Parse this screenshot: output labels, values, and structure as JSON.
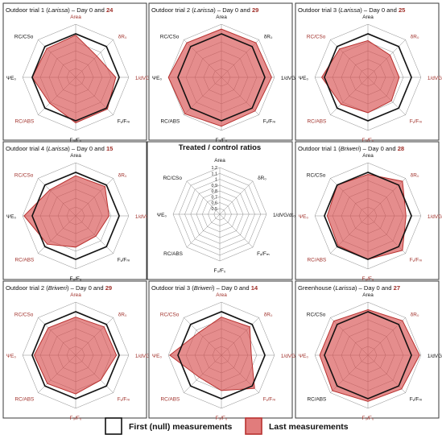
{
  "chart_data": [
    {
      "type": "radar",
      "title": "Outdoor trial 1 (Larissa) – Day 0 and 24",
      "title_parts": [
        "Outdoor trial 1 (",
        "Larissa",
        ") – Day 0 and ",
        "24"
      ],
      "axes": [
        "Area",
        "δR₀",
        "1/dVG/dt₀",
        "Fᵥ/Fₘ",
        "F₀/F₀",
        "RC/ABS",
        "ΨE₀",
        "RC/CSo"
      ],
      "axes_red": [
        true,
        true,
        true,
        false,
        false,
        true,
        false,
        false
      ],
      "series": [
        {
          "name": "First (null) measurements",
          "values": [
            1,
            1,
            1,
            1,
            1,
            1,
            1,
            1
          ]
        },
        {
          "name": "Last measurements",
          "values": [
            0.98,
            0.8,
            0.95,
            1.02,
            1.03,
            0.9,
            1.0,
            0.96
          ]
        }
      ],
      "rlim": [
        0.5,
        1.25
      ]
    },
    {
      "type": "radar",
      "title": "Outdoor trial 2 (Larissa) – Day 0 and 29",
      "title_parts": [
        "Outdoor trial 2 (",
        "Larissa",
        ") – Day 0 and ",
        "29"
      ],
      "axes": [
        "Area",
        "δR₀",
        "1/dVG/dt₀",
        "Fᵥ/Fₘ",
        "F₀/F₀",
        "RC/ABS",
        "ΨE₀",
        "RC/CSo"
      ],
      "axes_red": [
        false,
        false,
        false,
        false,
        false,
        false,
        false,
        false
      ],
      "series": [
        {
          "name": "First (null) measurements",
          "values": [
            1,
            1,
            1,
            1,
            1,
            1,
            1,
            1
          ]
        },
        {
          "name": "Last measurements",
          "values": [
            1.07,
            1.08,
            1.1,
            1.06,
            1.08,
            1.12,
            1.14,
            1.08
          ]
        }
      ],
      "rlim": [
        0.5,
        1.25
      ]
    },
    {
      "type": "radar",
      "title": "Outdoor trial 3 (Larissa) – Day 0 and 25",
      "title_parts": [
        "Outdoor trial 3 (",
        "Larissa",
        ") – Day 0 and ",
        "25"
      ],
      "axes": [
        "Area",
        "δR₀",
        "1/dVG/dt₀",
        "Fᵥ/Fₘ",
        "F₀/F₀",
        "RC/ABS",
        "ΨE₀",
        "RC/CSo"
      ],
      "axes_red": [
        false,
        true,
        true,
        true,
        true,
        true,
        false,
        true
      ],
      "series": [
        {
          "name": "First (null) measurements",
          "values": [
            1,
            1,
            1,
            1,
            1,
            1,
            1,
            1
          ]
        },
        {
          "name": "Last measurements",
          "values": [
            0.9,
            0.82,
            0.82,
            0.85,
            0.88,
            0.92,
            1.04,
            0.95
          ]
        }
      ],
      "rlim": [
        0.5,
        1.25
      ]
    },
    {
      "type": "radar",
      "title": "Outdoor trial 4 (Larissa) – Day 0 and 15",
      "title_parts": [
        "Outdoor trial 4 (",
        "Larissa",
        ") – Day 0 and ",
        "15"
      ],
      "axes": [
        "Area",
        "δR₀",
        "1/dVG/dt₀",
        "Fᵥ/Fₘ",
        "F₀/F₀",
        "RC/ABS",
        "ΨE₀",
        "RC/CSo"
      ],
      "axes_red": [
        false,
        true,
        true,
        false,
        false,
        true,
        false,
        true
      ],
      "series": [
        {
          "name": "First (null) measurements",
          "values": [
            1,
            1,
            1,
            1,
            1,
            1,
            1,
            1
          ]
        },
        {
          "name": "Last measurements",
          "values": [
            0.95,
            0.97,
            0.85,
            0.78,
            0.82,
            0.95,
            1.12,
            0.9
          ]
        }
      ],
      "rlim": [
        0.5,
        1.25
      ]
    },
    {
      "type": "radar",
      "title": "Outdoor trial 1 (Briweri) – Day 0 and 28",
      "title_parts": [
        "Outdoor trial 1 (",
        "Briweri",
        ") – Day 0 and ",
        "28"
      ],
      "axes": [
        "Area",
        "δR₀",
        "1/dVG/dt₀",
        "Fᵥ/Fₘ",
        "F₀/F₀",
        "RC/ABS",
        "ΨE₀",
        "RC/CSo"
      ],
      "axes_red": [
        false,
        true,
        true,
        true,
        true,
        true,
        true,
        false
      ],
      "series": [
        {
          "name": "First (null) measurements",
          "values": [
            1,
            1,
            1,
            1,
            1,
            1,
            1,
            1
          ]
        },
        {
          "name": "Last measurements",
          "values": [
            0.97,
            1.08,
            0.92,
            1.08,
            1.0,
            0.98,
            0.96,
            1.0
          ]
        }
      ],
      "rlim": [
        0.5,
        1.25
      ]
    },
    {
      "type": "radar",
      "title": "Outdoor trial 2 (Briweri) – Day 0 and 29",
      "title_parts": [
        "Outdoor trial 2 (",
        "Briweri",
        ") – Day 0 and ",
        "29"
      ],
      "axes": [
        "Area",
        "δR₀",
        "1/dVG/dt₀",
        "Fᵥ/Fₘ",
        "F₀/F₀",
        "RC/ABS",
        "ΨE₀",
        "RC/CSo"
      ],
      "axes_red": [
        true,
        true,
        true,
        true,
        true,
        true,
        true,
        true
      ],
      "series": [
        {
          "name": "First (null) measurements",
          "values": [
            1,
            1,
            1,
            1,
            1,
            1,
            1,
            1
          ]
        },
        {
          "name": "Last measurements",
          "values": [
            0.92,
            0.95,
            0.96,
            0.88,
            0.93,
            0.95,
            0.97,
            0.93
          ]
        }
      ],
      "rlim": [
        0.5,
        1.25
      ]
    },
    {
      "type": "radar",
      "title": "Outdoor trial 3 (Briweri) – Day 0 and 14",
      "title_parts": [
        "Outdoor trial 3 (",
        "Briweri",
        ") – Day 0 and ",
        "14"
      ],
      "axes": [
        "Area",
        "δR₀",
        "1/dVG/dt₀",
        "Fᵥ/Fₘ",
        "F₀/F₀",
        "RC/ABS",
        "ΨE₀",
        "RC/CSo"
      ],
      "axes_red": [
        true,
        true,
        true,
        true,
        true,
        true,
        true,
        true
      ],
      "series": [
        {
          "name": "First (null) measurements",
          "values": [
            1,
            1,
            1,
            1,
            1,
            1,
            1,
            1
          ]
        },
        {
          "name": "Last measurements",
          "values": [
            0.92,
            0.95,
            0.8,
            1.05,
            0.88,
            0.82,
            1.12,
            0.83
          ]
        }
      ],
      "rlim": [
        0.5,
        1.25
      ]
    },
    {
      "type": "radar",
      "title": "Greenhouse (Larissa) – Day 0 and 27",
      "title_parts": [
        "Greenhouse (",
        "Larissa",
        ") – Day 0 and ",
        "27"
      ],
      "axes": [
        "Area",
        "δR₀",
        "1/dVG/dt₀",
        "Fᵥ/Fₘ",
        "F₀/F₀",
        "RC/ABS",
        "ΨE₀",
        "RC/CSo"
      ],
      "axes_red": [
        false,
        true,
        false,
        false,
        true,
        false,
        true,
        false
      ],
      "series": [
        {
          "name": "First (null) measurements",
          "values": [
            1,
            1,
            1,
            1,
            1,
            1,
            1,
            1
          ]
        },
        {
          "name": "Last measurements",
          "values": [
            1.03,
            1.08,
            1.12,
            1.06,
            1.04,
            1.1,
            1.07,
            1.07
          ]
        }
      ],
      "rlim": [
        0.5,
        1.25
      ]
    }
  ],
  "center_panel": {
    "title": "Treated / control ratios",
    "axes": [
      "Area",
      "δR₀",
      "1/dVG/dt₀",
      "Fᵥ/Fₘ",
      "F₀/F₀",
      "RC/ABS",
      "ΨE₀",
      "RC/CSo"
    ],
    "ticks": [
      "0.5",
      "0.6",
      "0.7",
      "0.8",
      "0.9",
      "1",
      "1.1",
      "1.2"
    ]
  },
  "legend": {
    "first_label": "First (null) measurements",
    "last_label": "Last measurements"
  },
  "colors": {
    "last_fill": "#d75050",
    "last_stroke": "#b83230",
    "first_stroke": "#111111",
    "highlight_text": "#a0302a"
  }
}
